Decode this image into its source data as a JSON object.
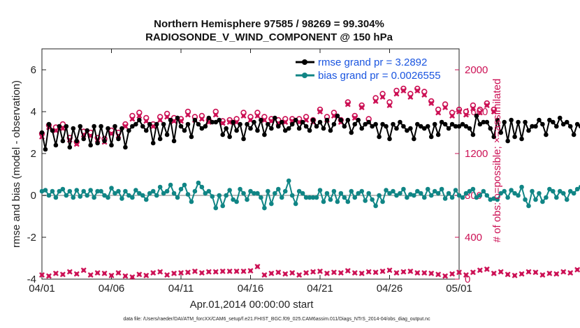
{
  "colors": {
    "rmse": "#000000",
    "bias": "#108585",
    "obs": "#cc1155",
    "legend_text": "#1a55e0",
    "zero_line": "#bbbbbb",
    "axis": "#222222"
  },
  "chart_data": {
    "type": "line",
    "title": "Northern Hemisphere 97585 / 98269 = 99.304%",
    "subtitle": "RADIOSONDE_V_WIND_COMPONENT @ 150 hPa",
    "xlabel": "Apr.01,2014 00:00:00 start",
    "ylabel_left": "rmse and bias (model - observation)",
    "ylabel_right": "# of obs: o=possible; ×=assimilated",
    "footer": "data file: /Users/raeder/DAI/ATM_forcXX/CAM6_setup/f.e21.FHIST_BGC.f09_025.CAM6assim.011/Diags_NTrS_2014-04/obs_diag_output.nc",
    "x_range": [
      0,
      30
    ],
    "x_ticks": [
      0,
      5,
      10,
      15,
      20,
      25,
      30
    ],
    "x_tick_labels": [
      "04/01",
      "04/06",
      "04/11",
      "04/16",
      "04/21",
      "04/26",
      "05/01"
    ],
    "ylim_left": [
      -4,
      7
    ],
    "y_ticks_left": [
      -4,
      -2,
      0,
      2,
      4,
      6
    ],
    "y_tick_labels_left": [
      "-4",
      "-2",
      "0",
      "2",
      "4",
      "6"
    ],
    "ylim_right": [
      0,
      2200
    ],
    "y_ticks_right": [
      0,
      400,
      800,
      1200,
      1600,
      2000
    ],
    "y_tick_labels_right": [
      "0",
      "400",
      "800",
      "1200",
      "1600",
      "2000"
    ],
    "legend": [
      {
        "label": "rmse grand pr = 3.2892",
        "series": "rmse"
      },
      {
        "label": "bias grand pr = 0.0026555",
        "series": "bias"
      }
    ],
    "series": [
      {
        "name": "rmse",
        "axis": "left",
        "x_start": 0,
        "x_step": 0.25,
        "values": [
          3.0,
          2.2,
          3.4,
          3.1,
          2.4,
          3.3,
          2.6,
          3.3,
          2.3,
          3.2,
          2.6,
          3.3,
          2.7,
          3.1,
          2.4,
          3.3,
          2.5,
          3.3,
          2.6,
          3.2,
          2.4,
          3.3,
          2.7,
          3.2,
          2.3,
          3.1,
          3.3,
          3.4,
          3.6,
          3.3,
          3.1,
          3.4,
          2.5,
          3.4,
          2.7,
          3.4,
          2.9,
          3.6,
          2.6,
          3.7,
          3.3,
          3.1,
          3.4,
          2.8,
          3.6,
          3.4,
          3.2,
          3.3,
          3.7,
          3.5,
          3.5,
          3.6,
          2.9,
          3.2,
          2.8,
          3.5,
          3.1,
          3.4,
          2.7,
          3.4,
          3.2,
          3.5,
          3.1,
          3.6,
          2.9,
          3.4,
          3.2,
          3.7,
          3.3,
          3.5,
          3.1,
          3.2,
          3.4,
          3.6,
          3.2,
          3.5,
          3.3,
          3.1,
          3.6,
          3.3,
          3.5,
          3.2,
          3.6,
          3.1,
          3.4,
          3.8,
          3.6,
          3.3,
          3.6,
          3.0,
          3.4,
          3.6,
          3.2,
          3.4,
          3.5,
          3.3,
          3.4,
          2.8,
          3.4,
          3.3,
          2.7,
          3.4,
          3.2,
          3.5,
          3.3,
          3.1,
          3.2,
          2.7,
          3.4,
          3.3,
          3.2,
          3.3,
          2.8,
          3.4,
          2.9,
          3.5,
          3.4,
          3.2,
          3.4,
          3.3,
          3.3,
          3.4,
          3.3,
          3.2,
          2.9,
          3.8,
          3.4,
          3.5,
          3.5,
          3.2,
          2.8,
          3.6,
          3.0,
          3.5,
          2.6,
          3.6,
          2.8,
          3.5,
          2.7,
          3.5,
          3.1,
          3.3,
          3.3,
          3.6,
          3.4,
          2.9,
          3.6,
          3.5,
          3.3,
          3.7,
          3.4,
          3.5,
          3.3,
          2.9,
          3.4,
          3.3,
          3.5,
          2.6,
          3.7,
          3.5,
          3.4,
          3.3,
          3.5,
          2.5,
          3.6,
          3.1,
          3.6,
          2.7,
          3.4,
          3.5,
          2.8,
          3.6,
          3.3,
          3.7,
          2.4,
          3.5,
          3.4
        ]
      },
      {
        "name": "bias",
        "axis": "left",
        "x_start": 0,
        "x_step": 0.25,
        "values": [
          0.2,
          0.25,
          0.0,
          0.2,
          -0.1,
          0.2,
          0.3,
          0.0,
          0.2,
          -0.1,
          0.25,
          -0.05,
          0.2,
          0.0,
          0.25,
          -0.1,
          0.2,
          0.2,
          0.0,
          -0.1,
          0.35,
          0.1,
          0.2,
          -0.15,
          0.2,
          0.0,
          -0.1,
          0.25,
          0.1,
          0.0,
          -0.2,
          0.1,
          0.2,
          0.0,
          0.4,
          0.1,
          0.2,
          0.5,
          0.1,
          -0.1,
          0.3,
          0.5,
          0.05,
          -0.3,
          0.2,
          0.6,
          0.4,
          0.1,
          0.2,
          -0.05,
          -0.6,
          0.0,
          -0.5,
          0.0,
          0.25,
          -0.2,
          -0.3,
          0.3,
          0.1,
          -0.2,
          0.2,
          0.1,
          0.1,
          -0.1,
          -0.6,
          0.2,
          -0.4,
          0.1,
          0.3,
          -0.1,
          0.2,
          0.7,
          0.0,
          -0.4,
          0.2,
          0.1,
          -0.1,
          -0.1,
          -0.1,
          -0.1,
          0.25,
          -0.3,
          0.1,
          -0.2,
          0.2,
          -0.3,
          0.1,
          -0.1,
          -0.3,
          0.2,
          -0.1,
          0.1,
          0.2,
          -0.25,
          0.1,
          -0.2,
          -0.5,
          0.0,
          -0.3,
          0.25,
          0.1,
          0.2,
          0.0,
          0.1,
          0.3,
          -0.1,
          0.05,
          0.0,
          0.2,
          0.1,
          -0.1,
          0.3,
          0.0,
          0.2,
          0.1,
          0.3,
          -0.15,
          0.1,
          -0.1,
          0.25,
          0.0,
          -0.1,
          0.1,
          0.2,
          0.3,
          -0.1,
          0.0,
          0.2,
          0.0,
          -0.2,
          -0.15,
          -0.2,
          0.1,
          0.2,
          -0.1,
          0.25,
          0.1,
          0.0,
          0.4,
          -0.2,
          -0.5,
          0.2,
          -0.2,
          0.1,
          -0.3,
          -0.1,
          0.3,
          0.2,
          -0.1,
          0.2,
          0.1,
          -0.2,
          0.2,
          0.1,
          0.3,
          0.4,
          0.1,
          0.0,
          -0.2,
          0.2,
          -0.2,
          0.1,
          -0.1,
          0.0,
          0.2,
          -0.3,
          0.1,
          0.4,
          -0.4,
          0.3,
          0.0,
          -0.1,
          0.2,
          0.3,
          -1.4,
          0.1,
          0.2,
          -0.1,
          -0.5
        ]
      },
      {
        "name": "obs_assimilated",
        "axis": "right",
        "x_start": 0,
        "x_step": 0.5,
        "values": [
          1360,
          1450,
          1420,
          1440,
          1330,
          1290,
          1380,
          1370,
          1330,
          1310,
          1390,
          1370,
          1460,
          1530,
          1560,
          1510,
          1460,
          1520,
          1550,
          1510,
          1510,
          1570,
          1520,
          1530,
          1500,
          1570,
          1490,
          1500,
          1500,
          1560,
          1520,
          1560,
          1520,
          1510,
          1490,
          1500,
          1510,
          1500,
          1520,
          1500,
          1600,
          1520,
          1560,
          1500,
          1670,
          1540,
          1640,
          1500,
          1700,
          1740,
          1660,
          1770,
          1800,
          1740,
          1800,
          1760,
          1680,
          1590,
          1640,
          1560,
          1600,
          1570,
          1630,
          1590,
          1660,
          1600
        ]
      },
      {
        "name": "obs_possible",
        "axis": "right",
        "x_start": 0,
        "x_step": 0.5,
        "values": [
          1390,
          1470,
          1450,
          1480,
          1350,
          1310,
          1410,
          1400,
          1350,
          1340,
          1420,
          1400,
          1480,
          1560,
          1590,
          1540,
          1480,
          1550,
          1580,
          1540,
          1530,
          1600,
          1550,
          1560,
          1520,
          1600,
          1510,
          1520,
          1530,
          1590,
          1550,
          1590,
          1550,
          1530,
          1520,
          1530,
          1530,
          1530,
          1550,
          1520,
          1620,
          1550,
          1590,
          1520,
          1690,
          1560,
          1660,
          1530,
          1730,
          1770,
          1690,
          1800,
          1820,
          1770,
          1820,
          1790,
          1700,
          1620,
          1670,
          1590,
          1620,
          1600,
          1660,
          1620,
          1680,
          1620
        ]
      },
      {
        "name": "obs_low",
        "axis": "right",
        "x_start": 0,
        "x_step": 0.5,
        "values": [
          40,
          30,
          55,
          45,
          70,
          50,
          85,
          40,
          60,
          55,
          35,
          60,
          30,
          20,
          45,
          35,
          60,
          70,
          40,
          55,
          60,
          65,
          75,
          60,
          70,
          70,
          75,
          75,
          75,
          75,
          80,
          120,
          40,
          55,
          65,
          50,
          60,
          40,
          60,
          70,
          75,
          55,
          65,
          60,
          80,
          60,
          55,
          70,
          65,
          75,
          85,
          60,
          70,
          75,
          60,
          60,
          55,
          45,
          30,
          50,
          65,
          40,
          65,
          85,
          95,
          55,
          70,
          45,
          35,
          50,
          70,
          65,
          40,
          55,
          50,
          70,
          60,
          90,
          40
        ]
      }
    ]
  }
}
